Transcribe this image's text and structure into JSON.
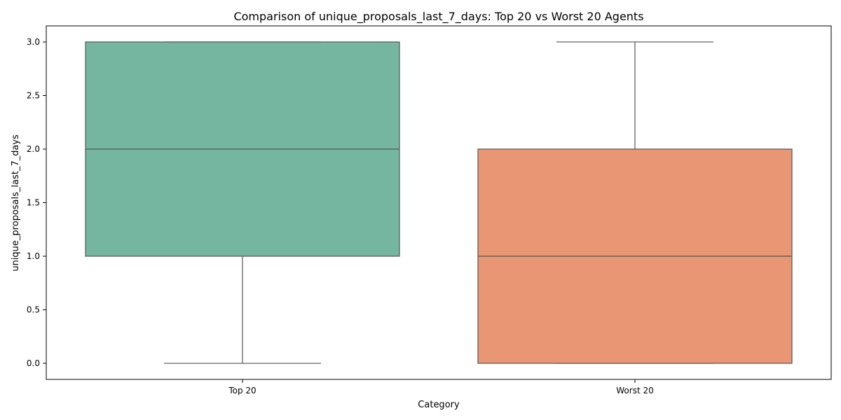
{
  "chart_data": {
    "type": "box",
    "title": "Comparison of unique_proposals_last_7_days: Top 20 vs Worst 20 Agents",
    "xlabel": "Category",
    "ylabel": "unique_proposals_last_7_days",
    "categories": [
      "Top 20",
      "Worst 20"
    ],
    "ylim": [
      -0.15,
      3.15
    ],
    "yticks": [
      0.0,
      0.5,
      1.0,
      1.5,
      2.0,
      2.5,
      3.0
    ],
    "ytick_labels": [
      "0.0",
      "0.5",
      "1.0",
      "1.5",
      "2.0",
      "2.5",
      "3.0"
    ],
    "grid": false,
    "legend": "none",
    "boxes": [
      {
        "category": "Top 20",
        "whisker_low": 0,
        "q1": 1,
        "median": 2,
        "q3": 3,
        "whisker_high": 3,
        "color": "#74b6a0"
      },
      {
        "category": "Worst 20",
        "whisker_low": 0,
        "q1": 0,
        "median": 1,
        "q3": 2,
        "whisker_high": 3,
        "color": "#e99675"
      }
    ],
    "line_color": "#555555"
  }
}
